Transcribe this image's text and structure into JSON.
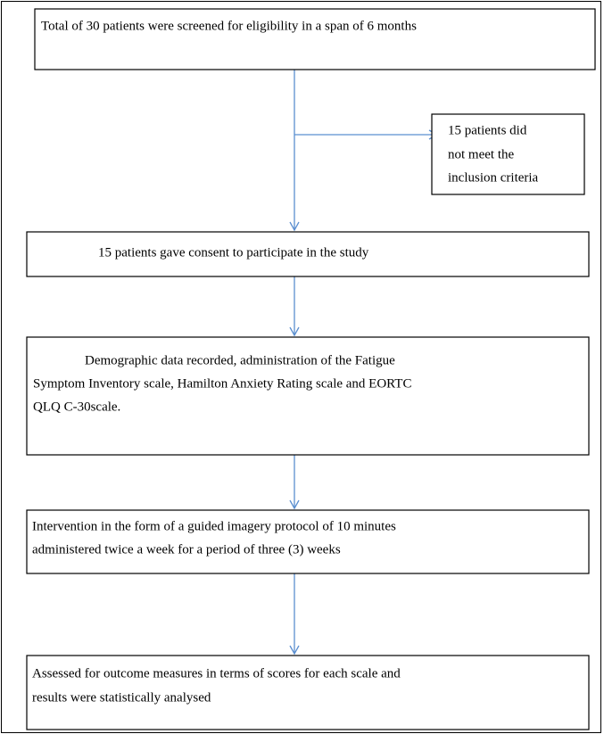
{
  "nodes": [
    {
      "lines": [
        "Total of 30 patients were screened for eligibility in a span of 6 months"
      ]
    },
    {
      "lines": [
        "15 patients did",
        "not meet the",
        "inclusion criteria"
      ]
    },
    {
      "lines": [
        "15 patients gave consent to participate in the study"
      ]
    },
    {
      "lines": [
        "Demographic data recorded, administration of the Fatigue",
        "Symptom Inventory scale, Hamilton Anxiety Rating scale and EORTC",
        "QLQ C-30scale."
      ]
    },
    {
      "lines": [
        "Intervention in the form of a guided imagery protocol of 10 minutes",
        "administered twice a week for a period of three (3) weeks"
      ]
    },
    {
      "lines": [
        "Assessed for outcome measures in terms of scores for each scale and",
        "results were statistically analysed"
      ]
    }
  ]
}
